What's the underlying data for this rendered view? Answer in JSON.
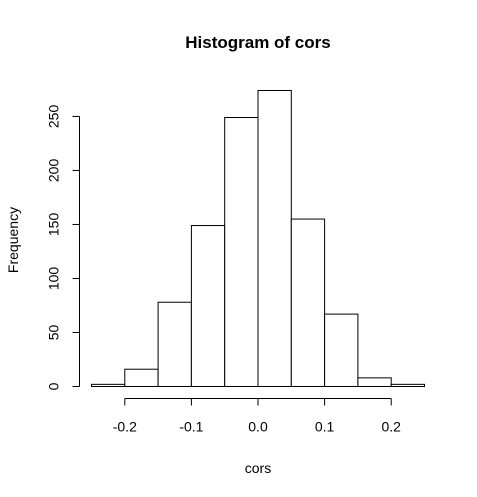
{
  "chart_data": {
    "type": "bar",
    "title": "Histogram of cors",
    "xlabel": "cors",
    "ylabel": "Frequency",
    "bins": [
      {
        "x0": -0.25,
        "x1": -0.2,
        "count": 2
      },
      {
        "x0": -0.2,
        "x1": -0.15,
        "count": 16
      },
      {
        "x0": -0.15,
        "x1": -0.1,
        "count": 78
      },
      {
        "x0": -0.1,
        "x1": -0.05,
        "count": 149
      },
      {
        "x0": -0.05,
        "x1": 0.0,
        "count": 249
      },
      {
        "x0": 0.0,
        "x1": 0.05,
        "count": 274
      },
      {
        "x0": 0.05,
        "x1": 0.1,
        "count": 155
      },
      {
        "x0": 0.1,
        "x1": 0.15,
        "count": 67
      },
      {
        "x0": 0.15,
        "x1": 0.2,
        "count": 8
      },
      {
        "x0": 0.2,
        "x1": 0.25,
        "count": 2
      }
    ],
    "xlim": [
      -0.25,
      0.25
    ],
    "ylim": [
      0,
      274
    ],
    "x_ticks": [
      -0.2,
      -0.1,
      0.0,
      0.1,
      0.2
    ],
    "x_tick_labels": [
      "-0.2",
      "-0.1",
      "0.0",
      "0.1",
      "0.2"
    ],
    "y_ticks": [
      0,
      50,
      100,
      150,
      200,
      250
    ],
    "y_tick_labels": [
      "0",
      "50",
      "100",
      "150",
      "200",
      "250"
    ],
    "grid": false,
    "colors": {
      "bar_fill": "#ffffff",
      "bar_stroke": "#000000"
    }
  }
}
